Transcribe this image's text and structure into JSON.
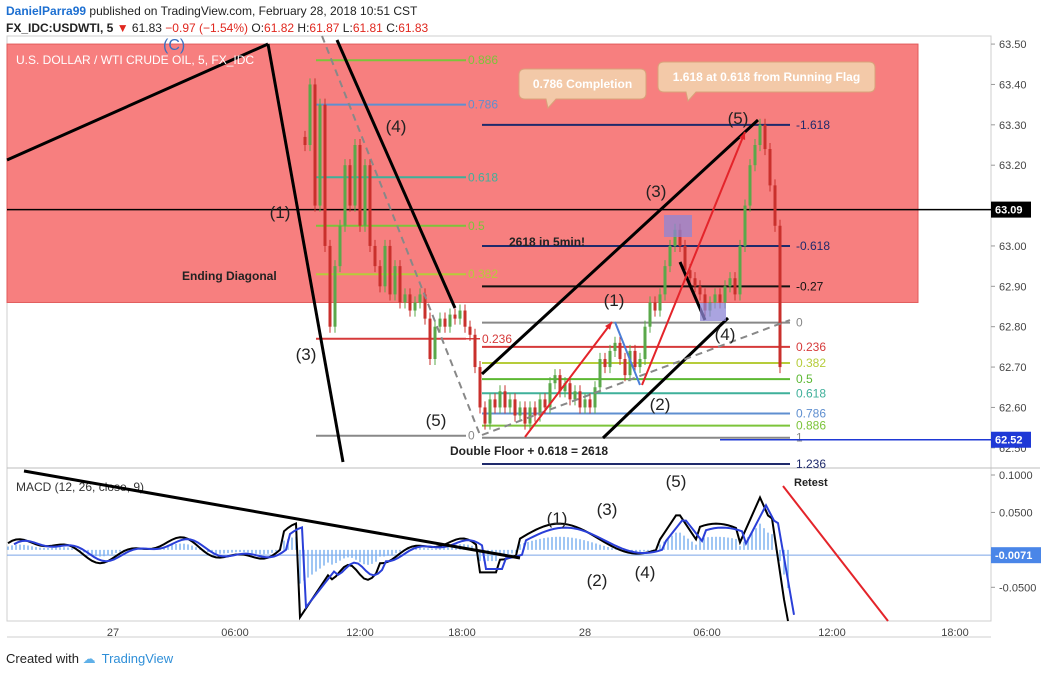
{
  "header": {
    "author": "DanielParra99",
    "published": "published on TradingView.com, February 28, 2018 10:51 CST",
    "symbol": "FX_IDC:USDWTI, 5",
    "last": "61.83",
    "change": "−0.97 (−1.54%)",
    "o_label": "O:",
    "o": "61.82",
    "h_label": "H:",
    "h": "61.87",
    "l_label": "L:",
    "l": "61.81",
    "c_label": "C:",
    "c": "61.83"
  },
  "footer": {
    "created": "Created with",
    "brand": "TradingView"
  },
  "chart_data": [
    {
      "type": "candlestick",
      "title": "U.S. DOLLAR / WTI CRUDE OIL, 5, FX_IDC",
      "ylim": [
        62.45,
        63.52
      ],
      "y_ticks": [
        62.5,
        62.6,
        62.7,
        62.8,
        62.9,
        63.0,
        63.1,
        63.2,
        63.3,
        63.4,
        63.5
      ],
      "y_tick_labels": [
        "62.50",
        "62.60",
        "62.70",
        "62.80",
        "62.90",
        "63.00",
        "63.10",
        "63.20",
        "63.30",
        "63.40",
        "63.50"
      ],
      "x_labels": [
        "27",
        "06:00",
        "12:00",
        "18:00",
        "28",
        "06:00",
        "12:00",
        "18:00"
      ],
      "price_tags": [
        {
          "label": "63.09",
          "value": 63.09,
          "color": "#000000"
        },
        {
          "label": "62.52",
          "value": 62.52,
          "color": "#1f39d6"
        }
      ],
      "zone": {
        "from": 62.86,
        "to": 63.5,
        "color": "#f77f7f"
      },
      "fib_left": [
        {
          "label": "0.886",
          "value": 63.46,
          "color": "#7cc43a"
        },
        {
          "label": "0.786",
          "value": 63.35,
          "color": "#5f8fd0"
        },
        {
          "label": "0.618",
          "value": 63.17,
          "color": "#3fb09a"
        },
        {
          "label": "0.5",
          "value": 63.05,
          "color": "#7cc43a"
        },
        {
          "label": "0.382",
          "value": 62.93,
          "color": "#b6cc3a"
        },
        {
          "label": "0.236",
          "value": 62.77,
          "color": "#d63a3a"
        },
        {
          "label": "0",
          "value": 62.53,
          "color": "#888888"
        }
      ],
      "fib_right": [
        {
          "label": "-1.618",
          "value": 63.3,
          "color": "#1f2a6b"
        },
        {
          "label": "-0.618",
          "value": 63.0,
          "color": "#1f2a6b"
        },
        {
          "label": "-0.27",
          "value": 62.9,
          "color": "#111111"
        },
        {
          "label": "0",
          "value": 62.81,
          "color": "#888888"
        },
        {
          "label": "0.236",
          "value": 62.75,
          "color": "#d63a3a"
        },
        {
          "label": "0.382",
          "value": 62.71,
          "color": "#b6cc3a"
        },
        {
          "label": "0.5",
          "value": 62.67,
          "color": "#5cb832"
        },
        {
          "label": "0.618",
          "value": 62.635,
          "color": "#3fb09a"
        },
        {
          "label": "0.786",
          "value": 62.585,
          "color": "#5f8fd0"
        },
        {
          "label": "0.886",
          "value": 62.555,
          "color": "#7cc43a"
        },
        {
          "label": "1",
          "value": 62.525,
          "color": "#888888"
        },
        {
          "label": "1.236",
          "value": 62.46,
          "color": "#1f2a6b"
        }
      ],
      "annotations": {
        "ending_diagonal": "Ending Diagonal",
        "double_floor": "Double Floor + 0.618 = 2618",
        "in5min": "2618 in 5min!",
        "callout1": "0.786 Completion",
        "callout2": "1.618 at 0.618 from Running Flag",
        "retest": "Retest",
        "wave_c": "(C)",
        "waves": [
          "(1)",
          "(2)",
          "(3)",
          "(4)",
          "(5)"
        ]
      }
    },
    {
      "type": "macd",
      "title": "MACD (12, 26, close, 9)",
      "ylim": [
        -0.095,
        0.108
      ],
      "y_ticks": [
        0.1,
        0.05,
        0,
        -0.05
      ],
      "y_tick_labels": [
        "0.1000",
        "0.0500",
        "",
        "-0.0500"
      ],
      "current_tag": "-0.0071",
      "current_value": -0.0071,
      "wave_labels": [
        "(1)",
        "(2)",
        "(3)",
        "(4)",
        "(5)"
      ]
    }
  ]
}
